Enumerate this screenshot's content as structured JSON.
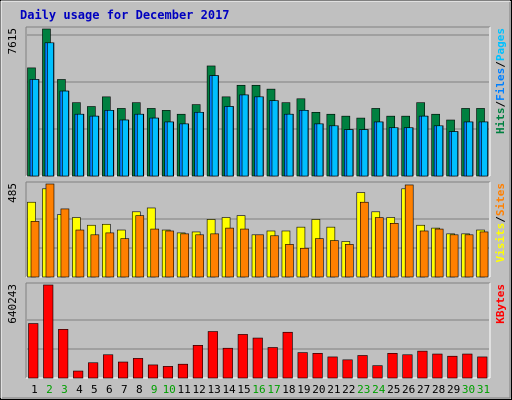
{
  "title": "Daily usage for December 2017",
  "colors": {
    "background": "#C0C0C0",
    "title": "#0000C0",
    "hits": "#008040",
    "files": "#0080FF",
    "pages": "#00C0FF",
    "visits": "#FFFF00",
    "sites": "#FF8000",
    "kbytes": "#FF0000",
    "grid": "#808080",
    "weekend_day": "#00A000",
    "weekday_day": "#000000"
  },
  "chart_data": [
    {
      "type": "bar",
      "panel": "hits-files-pages",
      "ylabel_max": "7615",
      "ymax": 7615,
      "legend": [
        "Pages",
        "Files",
        "Hits"
      ],
      "legend_separator": " / ",
      "x": [
        1,
        2,
        3,
        4,
        5,
        6,
        7,
        8,
        9,
        10,
        11,
        12,
        13,
        14,
        15,
        16,
        17,
        18,
        19,
        20,
        21,
        22,
        23,
        24,
        25,
        26,
        27,
        28,
        29,
        30,
        31
      ],
      "series": [
        {
          "name": "Hits",
          "values": [
            5600,
            7615,
            5000,
            3800,
            3600,
            4100,
            3500,
            3800,
            3500,
            3400,
            3200,
            3700,
            5700,
            4100,
            4700,
            4700,
            4500,
            3800,
            4000,
            3300,
            3200,
            3100,
            3000,
            3500,
            3100,
            3100,
            3800,
            3200,
            2900,
            3500,
            3500
          ]
        },
        {
          "name": "Files",
          "values": [
            5000,
            6900,
            4400,
            3200,
            3100,
            3400,
            2900,
            3200,
            3000,
            2800,
            2700,
            3300,
            5200,
            3600,
            4200,
            4100,
            3900,
            3200,
            3400,
            2700,
            2600,
            2400,
            2400,
            2800,
            2500,
            2500,
            3100,
            2600,
            2300,
            2800,
            2800
          ]
        },
        {
          "name": "Pages",
          "values": [
            5000,
            6900,
            4400,
            3200,
            3100,
            3400,
            2900,
            3200,
            3000,
            2800,
            2700,
            3300,
            5200,
            3600,
            4200,
            4100,
            3900,
            3200,
            3400,
            2700,
            2600,
            2400,
            2400,
            2800,
            2500,
            2500,
            3100,
            2600,
            2300,
            2800,
            2800
          ]
        }
      ]
    },
    {
      "type": "bar",
      "panel": "visits-sites",
      "ylabel_max": "485",
      "ymax": 485,
      "legend": [
        "Sites",
        "Visits"
      ],
      "legend_separator": " / ",
      "x": [
        1,
        2,
        3,
        4,
        5,
        6,
        7,
        8,
        9,
        10,
        11,
        12,
        13,
        14,
        15,
        16,
        17,
        18,
        19,
        20,
        21,
        22,
        23,
        24,
        25,
        26,
        27,
        28,
        29,
        30,
        31
      ],
      "series": [
        {
          "name": "Visits",
          "values": [
            390,
            460,
            325,
            310,
            270,
            275,
            245,
            340,
            360,
            245,
            230,
            235,
            300,
            310,
            320,
            220,
            240,
            240,
            260,
            300,
            260,
            185,
            440,
            340,
            310,
            460,
            270,
            255,
            225,
            225,
            245
          ]
        },
        {
          "name": "Sites",
          "values": [
            290,
            485,
            355,
            245,
            220,
            230,
            200,
            320,
            250,
            240,
            225,
            220,
            225,
            255,
            250,
            220,
            215,
            170,
            150,
            200,
            190,
            170,
            390,
            310,
            280,
            480,
            240,
            250,
            220,
            220,
            235
          ]
        }
      ]
    },
    {
      "type": "bar",
      "panel": "kbytes",
      "ylabel_max": "640243",
      "ymax": 640243,
      "legend": [
        "KBytes"
      ],
      "x": [
        1,
        2,
        3,
        4,
        5,
        6,
        7,
        8,
        9,
        10,
        11,
        12,
        13,
        14,
        15,
        16,
        17,
        18,
        19,
        20,
        21,
        22,
        23,
        24,
        25,
        26,
        27,
        28,
        29,
        30,
        31
      ],
      "series": [
        {
          "name": "KBytes",
          "values": [
            375000,
            640243,
            335000,
            48000,
            105000,
            160000,
            110000,
            135000,
            90000,
            80000,
            95000,
            225000,
            320000,
            205000,
            300000,
            275000,
            210000,
            315000,
            175000,
            170000,
            145000,
            125000,
            155000,
            85000,
            170000,
            160000,
            185000,
            165000,
            150000,
            165000,
            145000
          ]
        }
      ]
    }
  ],
  "day_labels": [
    "1",
    "2",
    "3",
    "4",
    "5",
    "6",
    "7",
    "8",
    "9",
    "10",
    "11",
    "12",
    "13",
    "14",
    "15",
    "16",
    "17",
    "18",
    "19",
    "20",
    "21",
    "22",
    "23",
    "24",
    "25",
    "26",
    "27",
    "28",
    "29",
    "30",
    "31"
  ],
  "weekend_days": [
    2,
    3,
    9,
    10,
    16,
    17,
    23,
    24,
    30,
    31
  ]
}
